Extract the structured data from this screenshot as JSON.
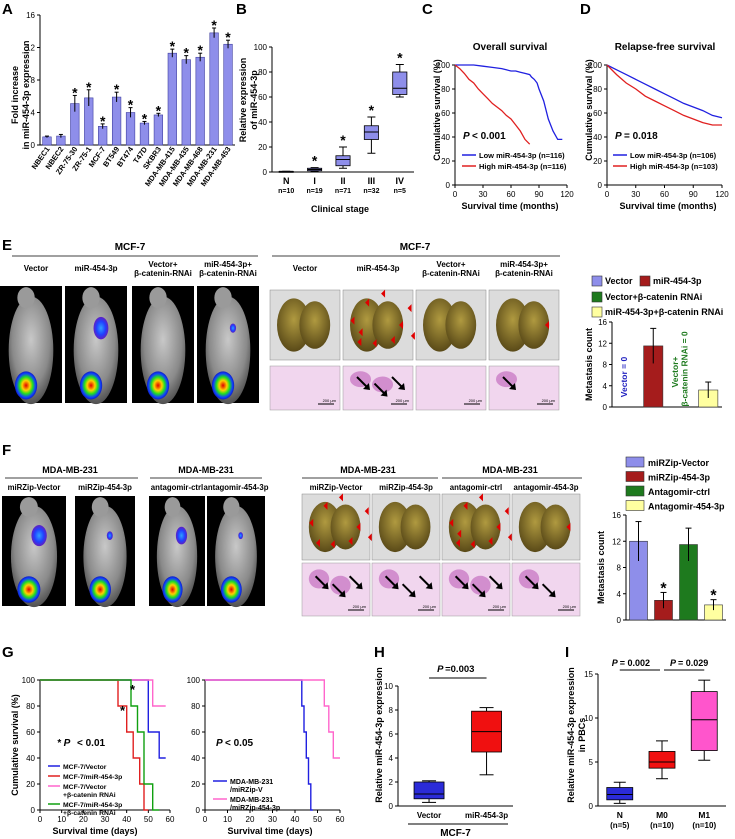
{
  "panels": {
    "A": "A",
    "B": "B",
    "C": "C",
    "D": "D",
    "E": "E",
    "F": "F",
    "G": "G",
    "H": "H",
    "I": "I"
  },
  "colors": {
    "blue": "#8e8eea",
    "blue_edge": "#4040a0",
    "red": "#e00000",
    "darkblue": "#1f1fc8",
    "darkred": "#a51c1c",
    "green": "#1e7a1e",
    "yellow": "#ffffa0",
    "magenta": "#ff66cc",
    "km_red": "#e02020",
    "km_blue": "#2020e0"
  },
  "panel_e": {
    "mice_title": "MCF-7",
    "lung_title": "MCF-7",
    "mice_groups": [
      [
        "Vector"
      ],
      [
        "miR-454-3p"
      ],
      [
        "Vector+",
        "β-catenin-RNAi"
      ],
      [
        "miR-454-3p+",
        "β-catenin-RNAi"
      ]
    ],
    "lung_groups": [
      [
        "Vector"
      ],
      [
        "miR-454-3p"
      ],
      [
        "Vector+",
        "β-catenin-RNAi"
      ],
      [
        "miR-454-3p+",
        "β-catenin-RNAi"
      ]
    ],
    "scale_bar": "200 μm"
  },
  "panel_f": {
    "mice_titles": [
      "MDA-MB-231",
      "MDA-MB-231"
    ],
    "mice_groups": [
      "miRZip-Vector",
      "miRZip-454-3p",
      "antagomir-ctrl",
      "antagomir-454-3p"
    ],
    "lung_titles": [
      "MDA-MB-231",
      "MDA-MB-231"
    ],
    "lung_groups": [
      "miRZip-Vector",
      "miRZip-454-3p",
      "antagomir-ctrl",
      "antagomir-454-3p"
    ],
    "scale_bar": "200 μm"
  },
  "chart_data": [
    {
      "type": "bar",
      "panel": "A",
      "ylabel_lines": [
        "Fold increase",
        "in miR-454-3p expression"
      ],
      "categories": [
        "NBEC1",
        "NBEC2",
        "ZR-75-30",
        "ZR-75-1",
        "MCF-7",
        "BT549",
        "BT474",
        "T47D",
        "SKBR3",
        "MDA-MB-415",
        "MDA-MB-435",
        "MDA-MB-468",
        "MDA-MB-231",
        "MDA-MB-453"
      ],
      "values": [
        1.0,
        1.1,
        5.1,
        5.8,
        2.3,
        5.9,
        4.0,
        2.7,
        3.7,
        11.3,
        10.5,
        10.8,
        13.8,
        12.4
      ],
      "errors": [
        0.1,
        0.2,
        1.0,
        1.0,
        0.3,
        0.6,
        0.6,
        0.2,
        0.2,
        0.5,
        0.5,
        0.5,
        0.6,
        0.5
      ],
      "significant": [
        false,
        false,
        true,
        true,
        true,
        true,
        true,
        true,
        true,
        true,
        true,
        true,
        true,
        true
      ],
      "star": "*",
      "ylim": [
        0,
        16
      ],
      "yticks": [
        "0",
        "4",
        "8",
        "12",
        "16"
      ]
    },
    {
      "type": "box",
      "panel": "B",
      "ylabel_lines": [
        "Relative expression",
        "of miR-454-3p"
      ],
      "xlabel": "Clinical stage",
      "categories": [
        "N",
        "I",
        "II",
        "III",
        "IV"
      ],
      "n_labels": [
        "n=10",
        "n=19",
        "n=71",
        "n=32",
        "n=5"
      ],
      "boxes": [
        [
          0.5,
          0.5,
          0.5,
          0.5,
          0.5
        ],
        [
          0.5,
          1.0,
          2.0,
          3.0,
          3.5
        ],
        [
          3,
          5,
          10,
          13,
          20
        ],
        [
          15,
          26,
          32,
          37,
          44
        ],
        [
          60,
          62,
          67,
          80,
          86
        ]
      ],
      "significant": [
        false,
        true,
        true,
        true,
        true
      ],
      "star": "*",
      "ylim": [
        0,
        100
      ],
      "yticks": [
        "0",
        "20",
        "40",
        "60",
        "80",
        "100"
      ]
    },
    {
      "type": "line",
      "panel": "C",
      "title": "Overall survival",
      "ylabel": "Cumulative survival (%)",
      "xlabel": "Survival time (months)",
      "xlim": [
        0,
        120
      ],
      "ylim": [
        0,
        100
      ],
      "xticks": [
        "0",
        "30",
        "60",
        "90",
        "120"
      ],
      "yticks": [
        "0",
        "20",
        "40",
        "60",
        "80",
        "100"
      ],
      "pvalue_label": "P",
      "pvalue": "< 0.001",
      "series": [
        {
          "name": "Low miR-454-3p (n=116)",
          "x": [
            0,
            20,
            30,
            40,
            50,
            55,
            60,
            65,
            70,
            75,
            80,
            82,
            85,
            88,
            90,
            95,
            100,
            105,
            110,
            115
          ],
          "y": [
            100,
            100,
            99,
            98,
            97,
            96,
            95,
            95,
            94,
            93,
            92,
            90,
            88,
            85,
            80,
            70,
            55,
            45,
            38,
            38
          ]
        },
        {
          "name": "High miR-454-3p (n=116)",
          "x": [
            0,
            5,
            10,
            15,
            20,
            25,
            30,
            35,
            40,
            45,
            50,
            55,
            60,
            65,
            70,
            75,
            80
          ],
          "y": [
            100,
            97,
            93,
            88,
            85,
            80,
            76,
            72,
            68,
            65,
            62,
            58,
            55,
            50,
            45,
            38,
            34
          ]
        }
      ]
    },
    {
      "type": "line",
      "panel": "D",
      "title": "Relapse-free survival",
      "ylabel": "Cumulative survival (%)",
      "xlabel": "Survival time (months)",
      "xlim": [
        0,
        120
      ],
      "ylim": [
        0,
        100
      ],
      "xticks": [
        "0",
        "30",
        "60",
        "90",
        "120"
      ],
      "yticks": [
        "0",
        "20",
        "40",
        "60",
        "80",
        "100"
      ],
      "pvalue_label": "P",
      "pvalue": "= 0.018",
      "series": [
        {
          "name": "Low miR-454-3p (n=106)",
          "x": [
            0,
            10,
            20,
            30,
            40,
            50,
            60,
            70,
            80,
            90,
            100,
            110,
            120
          ],
          "y": [
            100,
            96,
            92,
            88,
            84,
            80,
            76,
            72,
            68,
            65,
            62,
            58,
            56
          ]
        },
        {
          "name": "High miR-454-3p (n=103)",
          "x": [
            0,
            10,
            20,
            30,
            40,
            50,
            60,
            70,
            80,
            90,
            100,
            110,
            120
          ],
          "y": [
            100,
            92,
            85,
            80,
            74,
            70,
            66,
            62,
            58,
            55,
            52,
            50,
            50
          ]
        }
      ]
    },
    {
      "type": "bar",
      "panel": "E",
      "ylabel": "Metastasis count",
      "legend": [
        "Vector",
        "miR-454-3p",
        "Vector+β-catenin RNAi",
        "miR-454-3p+β-catenin RNAi"
      ],
      "values": [
        0,
        11.5,
        0,
        3.2
      ],
      "errors": [
        0,
        3.3,
        0,
        1.5
      ],
      "zero_labels": [
        "Vector = 0",
        "Vector+",
        "β-catenin RNAi = 0"
      ],
      "ylim": [
        0,
        16
      ],
      "yticks": [
        "0",
        "4",
        "8",
        "12",
        "16"
      ]
    },
    {
      "type": "bar",
      "panel": "F",
      "ylabel": "Metastasis count",
      "legend": [
        "miRZip-Vector",
        "miRZip-454-3p",
        "Antagomir-ctrl",
        "Antagomir-454-3p"
      ],
      "values": [
        12,
        3.0,
        11.5,
        2.3
      ],
      "errors": [
        3.0,
        1.2,
        2.5,
        0.8
      ],
      "significant": [
        false,
        true,
        false,
        true
      ],
      "star": "*",
      "ylim": [
        0,
        16
      ],
      "yticks": [
        "0",
        "4",
        "8",
        "12",
        "16"
      ]
    },
    {
      "type": "line",
      "panel": "G-left",
      "ylabel": "Cumulative survival (%)",
      "xlabel": "Survival time (days)",
      "xlim": [
        0,
        60
      ],
      "ylim": [
        0,
        100
      ],
      "xticks": [
        "0",
        "10",
        "20",
        "30",
        "40",
        "50",
        "60"
      ],
      "yticks": [
        "0",
        "20",
        "40",
        "60",
        "80",
        "100"
      ],
      "pvalue_label": "* P",
      "pvalue": "< 0.01",
      "series": [
        {
          "name": "MCF-7/Vector",
          "x": [
            0,
            50,
            50,
            55,
            55,
            58
          ],
          "y": [
            100,
            100,
            60,
            60,
            40,
            40
          ]
        },
        {
          "name": "MCF-7/miR-454-3p",
          "x": [
            0,
            36,
            36,
            40,
            40,
            43,
            43,
            46,
            46,
            48,
            48,
            50
          ],
          "y": [
            100,
            100,
            80,
            80,
            60,
            60,
            40,
            40,
            20,
            20,
            0,
            0
          ]
        },
        {
          "name": "MCF-7/Vector +β-catenin RNAi",
          "x": [
            0,
            52,
            52,
            58
          ],
          "y": [
            100,
            100,
            80,
            80
          ]
        },
        {
          "name": "MCF-7/miR-454-3p +β-catenin RNAi",
          "x": [
            0,
            42,
            42,
            45,
            45,
            48,
            48,
            52,
            52,
            55
          ],
          "y": [
            100,
            100,
            80,
            80,
            60,
            60,
            20,
            20,
            0,
            0
          ]
        }
      ],
      "stars": [
        "*",
        "*"
      ]
    },
    {
      "type": "line",
      "panel": "G-right",
      "ylabel": "Cumulative survival (%)",
      "xlabel": "Survival time (days)",
      "xlim": [
        0,
        60
      ],
      "ylim": [
        0,
        100
      ],
      "xticks": [
        "0",
        "10",
        "20",
        "30",
        "40",
        "50",
        "60"
      ],
      "yticks": [
        "0",
        "20",
        "40",
        "60",
        "80",
        "100"
      ],
      "pvalue_label": "P",
      "pvalue": "< 0.05",
      "series": [
        {
          "name": "MDA-MB-231 /miRZip-V",
          "x": [
            0,
            43,
            43,
            44,
            44,
            45,
            45,
            46,
            46,
            47,
            47,
            48
          ],
          "y": [
            100,
            100,
            80,
            80,
            60,
            60,
            40,
            40,
            20,
            20,
            0,
            0
          ]
        },
        {
          "name": "MDA-MB-231 /miRZip-454-3p",
          "x": [
            0,
            53,
            53,
            55,
            55,
            57,
            57,
            60
          ],
          "y": [
            100,
            100,
            80,
            80,
            60,
            60,
            40,
            40
          ]
        }
      ]
    },
    {
      "type": "box",
      "panel": "H",
      "ylabel": "Relative miR-454-3p expression",
      "group_label": "MCF-7",
      "categories": [
        "Vector",
        "miR-454-3p"
      ],
      "boxes": [
        [
          0.3,
          0.6,
          1.0,
          2.0,
          2.1
        ],
        [
          2.6,
          4.5,
          6.2,
          7.9,
          8.2
        ]
      ],
      "pvalue_label": "P",
      "pvalue": "=0.003",
      "ylim": [
        0,
        10
      ],
      "yticks": [
        "0",
        "2",
        "4",
        "6",
        "8",
        "10"
      ]
    },
    {
      "type": "box",
      "panel": "I",
      "ylabel_lines": [
        "Relative miR-454-3p expression",
        "in PBCs"
      ],
      "categories": [
        "N",
        "M0",
        "M1"
      ],
      "n_labels": [
        "(n=5)",
        "(n=10)",
        "(n=10)"
      ],
      "boxes": [
        [
          0.3,
          0.7,
          1.3,
          2.1,
          2.7
        ],
        [
          3.1,
          4.3,
          5.0,
          6.2,
          7.4
        ],
        [
          5.2,
          6.3,
          9.8,
          13.0,
          14.3
        ]
      ],
      "p_labels": [
        "P",
        "= 0.002",
        "P",
        "= 0.029"
      ],
      "ylim": [
        0,
        15
      ],
      "yticks": [
        "0",
        "5",
        "10",
        "15"
      ]
    }
  ]
}
